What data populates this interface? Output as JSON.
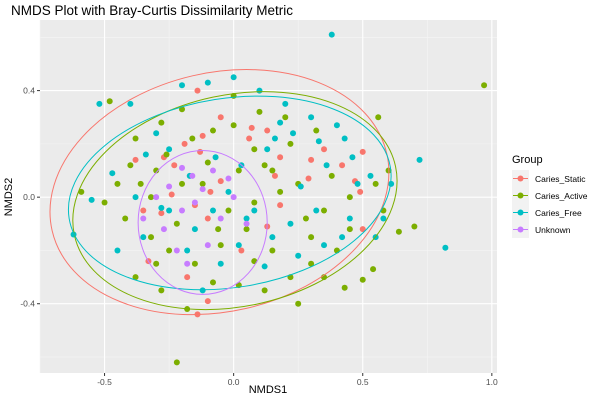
{
  "chart_data": {
    "type": "scatter",
    "title": "NMDS Plot with Bray-Curtis Dissimilarity Metric",
    "xlabel": "NMDS1",
    "ylabel": "NMDS2",
    "xlim": [
      -0.75,
      1.02
    ],
    "ylim": [
      -0.66,
      0.665
    ],
    "x_ticks": [
      -0.5,
      0.0,
      0.5,
      1.0
    ],
    "x_tick_labels": [
      "-0.5",
      "0.0",
      "0.5",
      "1.0"
    ],
    "y_ticks": [
      -0.4,
      0.0,
      0.4
    ],
    "y_tick_labels": [
      "-0.4",
      "0.0",
      "0.4"
    ],
    "grid": true,
    "legend": {
      "title": "Group",
      "position": "right"
    },
    "series": [
      {
        "name": "Caries_Static",
        "color": "#F8766D",
        "points": [
          [
            -0.38,
            0.14
          ],
          [
            -0.27,
            0.15
          ],
          [
            -0.19,
            0.2
          ],
          [
            -0.13,
            0.17
          ],
          [
            -0.05,
            0.06
          ],
          [
            0.06,
            0.22
          ],
          [
            0.18,
            0.15
          ],
          [
            0.3,
            0.14
          ],
          [
            0.35,
            0.18
          ],
          [
            0.42,
            0.12
          ],
          [
            0.5,
            0.17
          ],
          [
            0.47,
            0.06
          ],
          [
            0.49,
            0.02
          ],
          [
            -0.23,
            0.12
          ],
          [
            0.16,
            0.08
          ],
          [
            -0.05,
            0.3
          ],
          [
            -0.15,
            -0.03
          ],
          [
            -0.1,
            -0.08
          ],
          [
            -0.28,
            -0.06
          ],
          [
            -0.24,
            0.01
          ],
          [
            -0.09,
            0.02
          ],
          [
            0.03,
            -0.2
          ],
          [
            0.13,
            -0.11
          ],
          [
            -0.33,
            -0.24
          ],
          [
            -0.18,
            -0.3
          ],
          [
            -0.1,
            -0.39
          ],
          [
            -0.14,
            -0.44
          ],
          [
            0.18,
            -0.03
          ],
          [
            0.29,
            0.07
          ],
          [
            -0.12,
            0.23
          ],
          [
            0.13,
            0.25
          ],
          [
            0.07,
            0.26
          ],
          [
            0.5,
            -0.12
          ],
          [
            -0.14,
            0.4
          ],
          [
            -0.35,
            -0.05
          ]
        ]
      },
      {
        "name": "Caries_Active",
        "color": "#7CAE00",
        "points": [
          [
            0.97,
            0.42
          ],
          [
            0.56,
            0.3
          ],
          [
            0.7,
            -0.11
          ],
          [
            0.64,
            -0.13
          ],
          [
            0.54,
            -0.27
          ],
          [
            0.5,
            -0.31
          ],
          [
            0.43,
            -0.34
          ],
          [
            -0.22,
            -0.62
          ],
          [
            -0.48,
            0.36
          ],
          [
            -0.59,
            0.02
          ],
          [
            -0.4,
            0.12
          ],
          [
            -0.3,
            0.1
          ],
          [
            -0.2,
            0.05
          ],
          [
            -0.1,
            0.13
          ],
          [
            0.0,
            0.27
          ],
          [
            0.08,
            0.18
          ],
          [
            0.15,
            0.1
          ],
          [
            0.25,
            0.05
          ],
          [
            0.35,
            -0.05
          ],
          [
            0.45,
            0.0
          ],
          [
            -0.42,
            -0.08
          ],
          [
            -0.32,
            -0.15
          ],
          [
            -0.25,
            -0.2
          ],
          [
            -0.15,
            -0.25
          ],
          [
            -0.05,
            -0.18
          ],
          [
            0.05,
            -0.12
          ],
          [
            0.15,
            -0.2
          ],
          [
            0.22,
            -0.3
          ],
          [
            0.3,
            -0.25
          ],
          [
            0.4,
            -0.2
          ],
          [
            0.2,
            0.3
          ],
          [
            0.1,
            0.32
          ],
          [
            -0.08,
            0.25
          ],
          [
            -0.2,
            0.33
          ],
          [
            -0.28,
            0.28
          ],
          [
            -0.38,
            0.22
          ],
          [
            -0.45,
            0.05
          ],
          [
            -0.5,
            -0.02
          ],
          [
            -0.38,
            -0.3
          ],
          [
            -0.28,
            -0.35
          ],
          [
            -0.18,
            -0.42
          ],
          [
            -0.08,
            -0.32
          ],
          [
            0.02,
            -0.33
          ],
          [
            0.12,
            -0.35
          ],
          [
            0.25,
            -0.4
          ],
          [
            0.35,
            -0.3
          ],
          [
            0.45,
            -0.12
          ],
          [
            0.55,
            0.05
          ],
          [
            0.6,
            0.1
          ],
          [
            0.58,
            -0.05
          ],
          [
            -0.12,
            0.05
          ],
          [
            -0.02,
            -0.05
          ],
          [
            0.08,
            -0.02
          ],
          [
            0.18,
            0.02
          ],
          [
            0.28,
            -0.08
          ],
          [
            -0.22,
            -0.1
          ],
          [
            -0.32,
            0.0
          ],
          [
            0.38,
            0.08
          ],
          [
            0.02,
            0.1
          ],
          [
            -0.06,
            -0.12
          ],
          [
            0.12,
            0.12
          ],
          [
            0.22,
            0.2
          ],
          [
            0.32,
            0.25
          ],
          [
            -0.16,
            0.22
          ],
          [
            -0.26,
            0.16
          ],
          [
            -0.36,
            0.05
          ],
          [
            0.08,
            -0.24
          ],
          [
            -0.3,
            -0.25
          ],
          [
            0.0,
            0.38
          ],
          [
            0.3,
            -0.15
          ]
        ]
      },
      {
        "name": "Caries_Free",
        "color": "#00BFC4",
        "points": [
          [
            0.38,
            0.61
          ],
          [
            0.72,
            0.14
          ],
          [
            0.82,
            -0.19
          ],
          [
            -0.62,
            -0.14
          ],
          [
            -0.52,
            0.35
          ],
          [
            -0.47,
            0.09
          ],
          [
            -0.4,
            0.35
          ],
          [
            -0.3,
            0.24
          ],
          [
            -0.25,
            0.18
          ],
          [
            -0.17,
            0.08
          ],
          [
            -0.07,
            0.15
          ],
          [
            0.03,
            0.12
          ],
          [
            0.13,
            0.18
          ],
          [
            0.23,
            0.24
          ],
          [
            0.33,
            0.21
          ],
          [
            0.43,
            0.22
          ],
          [
            0.53,
            0.08
          ],
          [
            0.61,
            0.05
          ],
          [
            -0.55,
            -0.01
          ],
          [
            -0.45,
            -0.2
          ],
          [
            -0.35,
            -0.15
          ],
          [
            -0.25,
            -0.05
          ],
          [
            -0.15,
            -0.12
          ],
          [
            -0.05,
            -0.25
          ],
          [
            0.05,
            -0.08
          ],
          [
            0.15,
            -0.15
          ],
          [
            0.25,
            -0.22
          ],
          [
            0.35,
            -0.18
          ],
          [
            0.45,
            -0.08
          ],
          [
            0.55,
            -0.15
          ],
          [
            -0.2,
            0.42
          ],
          [
            -0.1,
            0.43
          ],
          [
            0.1,
            0.4
          ],
          [
            0.2,
            0.35
          ],
          [
            0.3,
            0.3
          ],
          [
            0.4,
            0.27
          ],
          [
            -0.38,
            0.0
          ],
          [
            -0.28,
            -0.04
          ],
          [
            -0.18,
            -0.2
          ],
          [
            -0.08,
            -0.05
          ],
          [
            0.02,
            -0.18
          ],
          [
            0.12,
            -0.26
          ],
          [
            0.22,
            -0.1
          ],
          [
            0.32,
            -0.05
          ],
          [
            0.42,
            -0.15
          ],
          [
            0.48,
            0.05
          ],
          [
            0.58,
            -0.08
          ],
          [
            0.08,
            -0.05
          ],
          [
            -0.12,
            -0.35
          ],
          [
            -0.02,
            0.02
          ],
          [
            0.26,
            0.04
          ],
          [
            0.36,
            0.12
          ],
          [
            0.46,
            0.15
          ],
          [
            0.16,
            0.22
          ],
          [
            -0.34,
            0.16
          ],
          [
            0.0,
            0.45
          ],
          [
            0.18,
            0.28
          ]
        ]
      },
      {
        "name": "Unknown",
        "color": "#C77CFF",
        "points": [
          [
            -0.35,
            -0.08
          ],
          [
            -0.27,
            -0.12
          ],
          [
            -0.2,
            -0.05
          ],
          [
            -0.15,
            -0.02
          ],
          [
            -0.1,
            -0.18
          ],
          [
            -0.05,
            -0.08
          ],
          [
            0.0,
            0.0
          ],
          [
            0.05,
            -0.1
          ],
          [
            -0.3,
            0.0
          ],
          [
            -0.22,
            -0.2
          ],
          [
            -0.18,
            -0.25
          ],
          [
            -0.12,
            0.03
          ],
          [
            -0.08,
            0.1
          ],
          [
            -0.25,
            0.04
          ],
          [
            -0.16,
            0.08
          ],
          [
            -0.2,
            0.11
          ],
          [
            -0.02,
            0.07
          ]
        ]
      }
    ],
    "ellipses": [
      {
        "series": "Caries_Static",
        "color": "#F8766D",
        "center": [
          -0.055,
          0.019
        ],
        "radii": [
          0.665,
          0.448
        ],
        "angle_deg": -13
      },
      {
        "series": "Caries_Active",
        "color": "#7CAE00",
        "center": [
          0.005,
          -0.013
        ],
        "radii": [
          0.636,
          0.397
        ],
        "angle_deg": -12
      },
      {
        "series": "Caries_Free",
        "color": "#00BFC4",
        "center": [
          -0.015,
          0.016
        ],
        "radii": [
          0.63,
          0.355
        ],
        "angle_deg": -9
      },
      {
        "series": "Unknown",
        "color": "#C77CFF",
        "center": [
          -0.12,
          -0.095
        ],
        "radii": [
          0.25,
          0.27
        ],
        "angle_deg": 0
      }
    ]
  }
}
